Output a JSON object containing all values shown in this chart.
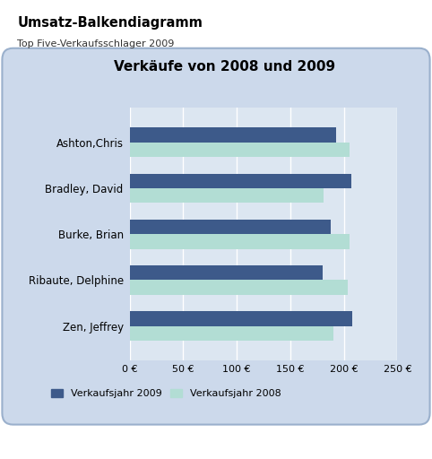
{
  "title_main": "Umsatz-Balkendiagramm",
  "title_sub": "Top Five-Verkaufsschlager 2009",
  "chart_title": "Verkäufe von 2008 und 2009",
  "categories": [
    "Ashton,Chris",
    "Bradley, David",
    "Burke, Brian",
    "Ribaute, Delphine",
    "Zen, Jeffrey"
  ],
  "values_2009": [
    193,
    207,
    188,
    180,
    208
  ],
  "values_2008": [
    205,
    181,
    205,
    204,
    190
  ],
  "color_2009": "#3d5a8a",
  "color_2008": "#b2ddd4",
  "xlim": [
    0,
    250
  ],
  "xticks": [
    0,
    50,
    100,
    150,
    200,
    250
  ],
  "xtick_labels": [
    "0 €",
    "50 €",
    "100 €",
    "150 €",
    "200 €",
    "250 €"
  ],
  "legend_2009": "Verkaufsjahr 2009",
  "legend_2008": "Verkaufsjahr 2008",
  "fig_bg": "#ffffff",
  "panel_bg": "#ccd9eb",
  "plot_bg": "#dce6f1",
  "panel_border_color": "#9ab0cc",
  "grid_color": "#ffffff",
  "bar_height": 0.32
}
